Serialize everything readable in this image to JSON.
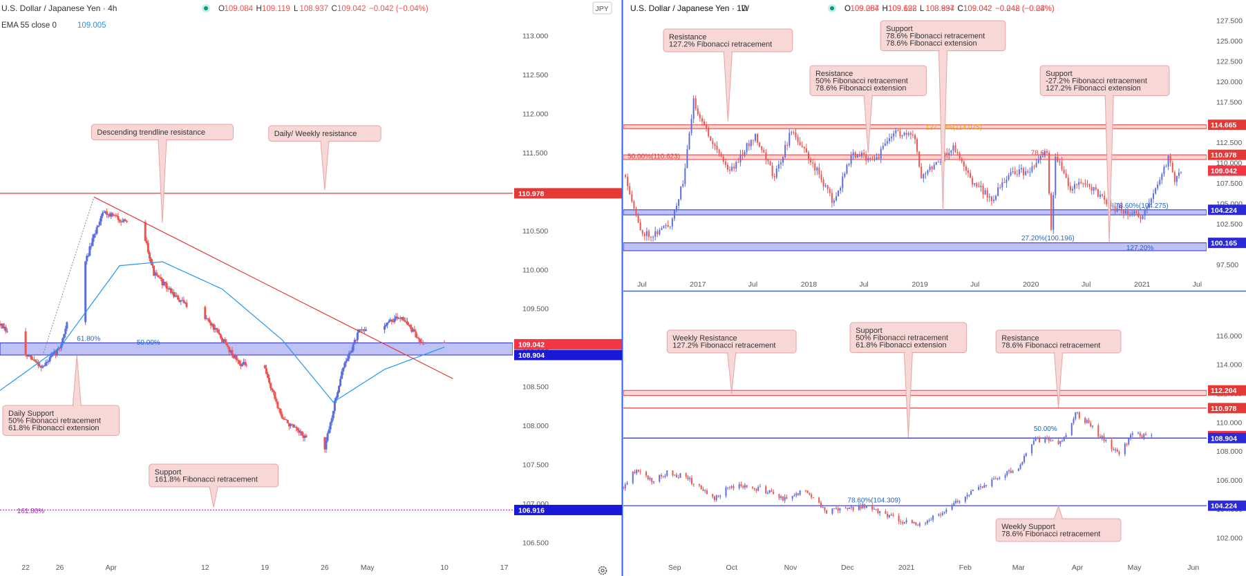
{
  "theme": {
    "up": "#5b6ee1",
    "down": "#ef5350",
    "resistance": "#e53935",
    "support": "#2a2ad8",
    "ema": "#2196f3",
    "callout_bg": "#f8d7d7",
    "callout_border": "#e6a3a3",
    "axis_text": "#555555",
    "separator": "#2962ff",
    "fib_gold": "#e0a800",
    "fib_blue": "#1e66c8",
    "fib_purple": "#9c27b0"
  },
  "chart_data": [
    {
      "id": "h4",
      "type": "candlestick",
      "header": {
        "symbol": "U.S. Dollar / Japanese Yen · 4h",
        "ohlc": [
          [
            "O",
            "109.084"
          ],
          [
            "H",
            "109.119"
          ],
          [
            "L",
            "108.937"
          ],
          [
            "C",
            "109.042"
          ]
        ],
        "change": "−0.042 (−0.04%)",
        "indicator_label": "EMA 55 close 0",
        "indicator_value": "109.005"
      },
      "currency_badge": "JPY",
      "ylim": [
        106.3,
        113.28
      ],
      "ylabels": [
        "113.000",
        "112.500",
        "112.000",
        "111.500",
        "111.000",
        "110.500",
        "110.000",
        "109.500",
        "109.000",
        "108.500",
        "108.000",
        "107.500",
        "107.000",
        "106.500"
      ],
      "xlabels": [
        "22",
        "26",
        "Apr",
        "12",
        "19",
        "26",
        "May",
        "10",
        "17"
      ],
      "xlim": [
        "2021-03-19",
        "2021-05-18"
      ],
      "price_flags": [
        {
          "label": "110.978",
          "value": 110.978,
          "kind": "res"
        },
        {
          "label": "109.042",
          "value": 109.042,
          "kind": "cur"
        },
        {
          "label": "108.904",
          "value": 108.904,
          "kind": "sup"
        },
        {
          "label": "106.916",
          "value": 106.916,
          "kind": "sup"
        }
      ],
      "zones": [
        {
          "from": 108.904,
          "to": 109.06
        }
      ],
      "hlines": [
        {
          "value": 110.978,
          "kind": "res"
        },
        {
          "value": 106.916,
          "kind": "dotted_purple"
        }
      ],
      "trendline": {
        "from": [
          "2021-03-30",
          110.93
        ],
        "to": [
          "2021-05-11",
          108.6
        ]
      },
      "fib_labels": [
        {
          "text": "61.80%",
          "x": "2021-03-28",
          "y": 109.07,
          "color": "blue"
        },
        {
          "text": "50.00%",
          "x": "2021-04-04",
          "y": 109.02,
          "color": "blue"
        },
        {
          "text": "161.80%",
          "x": "2021-03-21",
          "y": 106.86,
          "color": "purple"
        }
      ],
      "path_anchors": [
        [
          "2021-03-19",
          109.3
        ],
        [
          "2021-03-22",
          108.9
        ],
        [
          "2021-03-24",
          108.75
        ],
        [
          "2021-03-26",
          109.0
        ],
        [
          "2021-03-29",
          110.1
        ],
        [
          "2021-03-31",
          110.75
        ],
        [
          "2021-04-02",
          110.65
        ],
        [
          "2021-04-05",
          110.4
        ],
        [
          "2021-04-06",
          109.95
        ],
        [
          "2021-04-09",
          109.6
        ],
        [
          "2021-04-12",
          109.4
        ],
        [
          "2021-04-14",
          109.1
        ],
        [
          "2021-04-16",
          108.8
        ],
        [
          "2021-04-19",
          108.7
        ],
        [
          "2021-04-21",
          108.1
        ],
        [
          "2021-04-23",
          107.9
        ],
        [
          "2021-04-26",
          107.7
        ],
        [
          "2021-04-28",
          108.7
        ],
        [
          "2021-04-30",
          109.2
        ],
        [
          "2021-05-03",
          109.3
        ],
        [
          "2021-05-05",
          109.4
        ],
        [
          "2021-05-07",
          109.1
        ],
        [
          "2021-05-10",
          109.04
        ]
      ],
      "ema_anchors": [
        [
          "2021-03-19",
          108.45
        ],
        [
          "2021-03-26",
          109.0
        ],
        [
          "2021-04-02",
          110.05
        ],
        [
          "2021-04-07",
          110.1
        ],
        [
          "2021-04-14",
          109.75
        ],
        [
          "2021-04-21",
          109.1
        ],
        [
          "2021-04-27",
          108.3
        ],
        [
          "2021-05-03",
          108.72
        ],
        [
          "2021-05-10",
          109.005
        ]
      ],
      "callouts": [
        {
          "lines": [
            "Descending trendline resistance"
          ],
          "pointer": "down",
          "tip": [
            "2021-04-07",
            110.6
          ]
        },
        {
          "lines": [
            "Daily/ Weekly resistance"
          ],
          "pointer": "down",
          "tip": [
            "2021-04-26",
            111.02
          ]
        },
        {
          "lines": [
            "Daily Support",
            "50% Fibonacci retracement",
            "61.8% Fibonacci extension"
          ],
          "pointer": "up",
          "tip": [
            "2021-03-28",
            108.9
          ]
        },
        {
          "lines": [
            "Support",
            "161.8% Fibonacci retracement"
          ],
          "pointer": "down",
          "tip": [
            "2021-04-13",
            106.95
          ]
        }
      ]
    },
    {
      "id": "w1",
      "type": "candlestick",
      "header": {
        "symbol": "U.S. Dollar / Japanese Yen · 1W",
        "ohlc": [
          [
            "O",
            "109.267"
          ],
          [
            "H",
            "109.698"
          ],
          [
            "L",
            "108.894"
          ],
          [
            "C",
            "109.042"
          ]
        ],
        "change": "−0.248 (−0.23%)"
      },
      "ylim": [
        96.4,
        128.3
      ],
      "ylabels": [
        "127.500",
        "125.000",
        "122.500",
        "120.000",
        "117.500",
        "115.000",
        "112.500",
        "110.000",
        "107.500",
        "105.000",
        "102.500",
        "100.000",
        "97.500"
      ],
      "xlabels": [
        "Jul",
        "2017",
        "Jul",
        "2018",
        "Jul",
        "2019",
        "Jul",
        "2020",
        "Jul",
        "2021",
        "Jul"
      ],
      "xlim": [
        "2016-05-01",
        "2021-08-01"
      ],
      "price_flags": [
        {
          "label": "114.665",
          "value": 114.665,
          "kind": "res"
        },
        {
          "label": "110.978",
          "value": 110.978,
          "kind": "res"
        },
        {
          "label": "109.042",
          "value": 109.042,
          "kind": "cur"
        },
        {
          "label": "104.224",
          "value": 104.224,
          "kind": "sup"
        },
        {
          "label": "100.165",
          "value": 100.165,
          "kind": "sup"
        }
      ],
      "zones": [
        {
          "from": 114.2,
          "to": 114.665,
          "kind": "res"
        },
        {
          "from": 110.4,
          "to": 110.978,
          "kind": "res"
        },
        {
          "from": 103.6,
          "to": 104.224,
          "kind": "sup"
        },
        {
          "from": 99.2,
          "to": 100.165,
          "kind": "sup"
        }
      ],
      "fib_labels": [
        {
          "text": "127.20%(114.075)",
          "x": "2019-01-20",
          "y": 113.9,
          "color": "gold"
        },
        {
          "text": "50.00%(110.623)",
          "x": "2016-05-15",
          "y": 110.35,
          "color": "red"
        },
        {
          "text": "78.6",
          "x": "2020-01-01",
          "y": 110.8,
          "color": "red"
        },
        {
          "text": "78.60%(104.275)",
          "x": "2020-10-05",
          "y": 104.3,
          "color": "blue"
        },
        {
          "text": "27.20%(100.196)",
          "x": "2019-12-01",
          "y": 100.3,
          "color": "blue"
        },
        {
          "text": "127.20%",
          "x": "2020-11-10",
          "y": 99.1,
          "color": "blue"
        }
      ],
      "path_anchors": [
        [
          "2016-05-08",
          108.5
        ],
        [
          "2016-06-26",
          101.5
        ],
        [
          "2016-08-07",
          101.2
        ],
        [
          "2016-10-02",
          102.5
        ],
        [
          "2016-11-13",
          107.5
        ],
        [
          "2016-12-18",
          117.5
        ],
        [
          "2017-01-22",
          114.5
        ],
        [
          "2017-04-16",
          108.9
        ],
        [
          "2017-07-09",
          113.5
        ],
        [
          "2017-09-10",
          108.2
        ],
        [
          "2017-11-05",
          114.0
        ],
        [
          "2018-01-28",
          109.0
        ],
        [
          "2018-03-25",
          105.0
        ],
        [
          "2018-05-20",
          111.0
        ],
        [
          "2018-08-12",
          110.5
        ],
        [
          "2018-10-07",
          113.8
        ],
        [
          "2018-12-16",
          113.0
        ],
        [
          "2019-01-06",
          108.5
        ],
        [
          "2019-04-21",
          111.9
        ],
        [
          "2019-06-16",
          108.0
        ],
        [
          "2019-08-25",
          105.5
        ],
        [
          "2019-11-03",
          109.0
        ],
        [
          "2019-12-29",
          108.8
        ],
        [
          "2020-02-23",
          111.5
        ],
        [
          "2020-03-08",
          101.5
        ],
        [
          "2020-03-22",
          111.0
        ],
        [
          "2020-05-10",
          107.0
        ],
        [
          "2020-07-05",
          107.5
        ],
        [
          "2020-09-20",
          104.5
        ],
        [
          "2020-11-01",
          104.2
        ],
        [
          "2021-01-03",
          103.2
        ],
        [
          "2021-03-28",
          110.5
        ],
        [
          "2021-04-18",
          108.0
        ],
        [
          "2021-05-09",
          109.04
        ]
      ],
      "callouts": [
        {
          "lines": [
            "Resistance",
            "127.2% Fibonacci retracement"
          ],
          "pointer": "down",
          "tip": [
            "2017-04-10",
            115.1
          ]
        },
        {
          "lines": [
            "Resistance",
            "50% Fibonacci retracement",
            "78.6% Fibonacci extension"
          ],
          "pointer": "down",
          "tip": [
            "2018-07-15",
            111.2
          ]
        },
        {
          "lines": [
            "Support",
            "78.6% Fibonacci retracement",
            "78.6% Fibonacci extension"
          ],
          "pointer": "down",
          "tip": [
            "2019-03-18",
            104.2
          ]
        },
        {
          "lines": [
            "Support",
            "-27.2% Fibonacci retracement",
            "127.2% Fibonacci extension"
          ],
          "pointer": "down",
          "tip": [
            "2020-09-15",
            100.2
          ]
        }
      ]
    },
    {
      "id": "d1",
      "type": "candlestick",
      "header": {
        "symbol": "U.S. Dollar / Japanese Yen · 1D",
        "ohlc": [
          [
            "O",
            "109.084"
          ],
          [
            "H",
            "109.122"
          ],
          [
            "L",
            "108.937"
          ],
          [
            "C",
            "109.042"
          ]
        ],
        "change": "−0.042 (−0.04%)"
      },
      "ylim": [
        100.6,
        118.0
      ],
      "ylabels": [
        "116.000",
        "114.000",
        "112.000",
        "110.000",
        "108.000",
        "106.000",
        "104.000",
        "102.000"
      ],
      "xlabels": [
        "Sep",
        "Oct",
        "Nov",
        "Dec",
        "2021",
        "Feb",
        "Mar",
        "Apr",
        "May",
        "Jun"
      ],
      "xlim": [
        "2020-08-05",
        "2021-06-08"
      ],
      "price_flags": [
        {
          "label": "112.204",
          "value": 112.204,
          "kind": "res"
        },
        {
          "label": "110.978",
          "value": 110.978,
          "kind": "res"
        },
        {
          "label": "109.042",
          "value": 109.042,
          "kind": "cur"
        },
        {
          "label": "108.904",
          "value": 108.904,
          "kind": "sup"
        },
        {
          "label": "104.224",
          "value": 104.224,
          "kind": "sup"
        }
      ],
      "zones": [
        {
          "from": 111.85,
          "to": 112.204,
          "kind": "res"
        }
      ],
      "hlines": [
        {
          "value": 110.978,
          "kind": "res"
        },
        {
          "value": 108.904,
          "kind": "sup"
        },
        {
          "value": 104.224,
          "kind": "sup"
        }
      ],
      "fib_labels": [
        {
          "text": "78.60%(104.309)",
          "x": "2020-12-01",
          "y": 104.35,
          "color": "blue"
        },
        {
          "text": "50.00%",
          "x": "2021-03-09",
          "y": 109.3,
          "color": "blue"
        }
      ],
      "path_anchors": [
        [
          "2020-08-05",
          105.5
        ],
        [
          "2020-08-12",
          106.8
        ],
        [
          "2020-08-20",
          105.9
        ],
        [
          "2020-08-28",
          106.5
        ],
        [
          "2020-09-07",
          106.2
        ],
        [
          "2020-09-21",
          104.7
        ],
        [
          "2020-10-01",
          105.6
        ],
        [
          "2020-10-16",
          105.4
        ],
        [
          "2020-10-30",
          104.6
        ],
        [
          "2020-11-09",
          105.4
        ],
        [
          "2020-11-20",
          103.8
        ],
        [
          "2020-12-10",
          104.2
        ],
        [
          "2020-12-31",
          103.1
        ],
        [
          "2021-01-06",
          102.9
        ],
        [
          "2021-01-20",
          103.7
        ],
        [
          "2021-02-01",
          105.0
        ],
        [
          "2021-02-17",
          106.1
        ],
        [
          "2021-03-01",
          106.9
        ],
        [
          "2021-03-10",
          108.8
        ],
        [
          "2021-03-24",
          108.6
        ],
        [
          "2021-03-31",
          110.7
        ],
        [
          "2021-04-06",
          110.0
        ],
        [
          "2021-04-14",
          108.9
        ],
        [
          "2021-04-23",
          107.8
        ],
        [
          "2021-04-30",
          109.2
        ],
        [
          "2021-05-07",
          109.0
        ],
        [
          "2021-05-10",
          109.04
        ]
      ],
      "callouts": [
        {
          "lines": [
            "Weekly Resistance",
            "127.2% Fibonacci retracement"
          ],
          "pointer": "down",
          "tip": [
            "2020-10-01",
            112.0
          ]
        },
        {
          "lines": [
            "Support",
            "50% Fibonacci retracement",
            "61.8% Fibonacci extension"
          ],
          "pointer": "down",
          "tip": [
            "2021-01-02",
            108.95
          ]
        },
        {
          "lines": [
            "Resistance",
            "78.6% Fibonacci retracement"
          ],
          "pointer": "down",
          "tip": [
            "2021-03-22",
            111.0
          ]
        },
        {
          "lines": [
            "Weekly Support",
            "78.6% Fibonacci retracement"
          ],
          "pointer": "up",
          "tip": [
            "2021-03-22",
            104.2
          ]
        }
      ]
    }
  ]
}
